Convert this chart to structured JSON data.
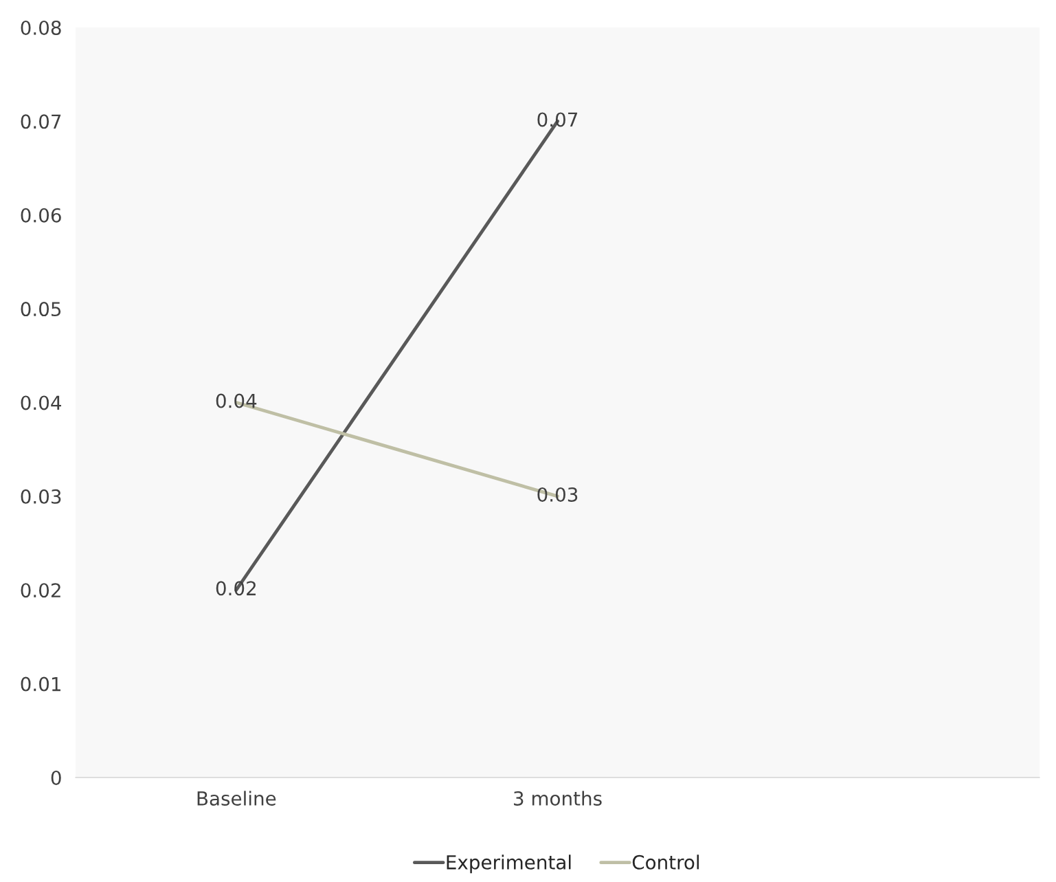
{
  "chart_data": {
    "type": "line",
    "categories": [
      "Baseline",
      "3 months",
      null
    ],
    "series": [
      {
        "name": "Experimental",
        "color": "#595959",
        "values": [
          0.02,
          0.07,
          null
        ]
      },
      {
        "name": "Control",
        "color": "#bfbfa5",
        "values": [
          0.04,
          0.03,
          null
        ]
      }
    ],
    "ylim": [
      0,
      0.08
    ],
    "yticks": [
      0,
      0.01,
      0.02,
      0.03,
      0.04,
      0.05,
      0.06,
      0.07,
      0.08
    ],
    "data_labels": true,
    "legend": "bottom",
    "grid": false,
    "marker": "none",
    "line_style": "solid"
  }
}
